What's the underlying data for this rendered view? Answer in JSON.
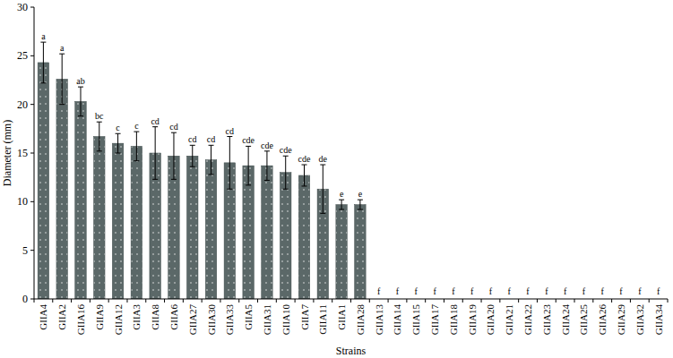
{
  "chart_data": {
    "type": "bar",
    "x_label": "Strains",
    "y_label": "Diameter (mm)",
    "categories": [
      "GIIA4",
      "GIIA2",
      "GIIA16",
      "GIIA9",
      "GIIA12",
      "GIIA3",
      "GIIA8",
      "GIIA6",
      "GIIA27",
      "GIIA30",
      "GIIA33",
      "GIIA5",
      "GIIA31",
      "GIIA10",
      "GIIA7",
      "GIIA11",
      "GIIA1",
      "GIIA28",
      "GIIA13",
      "GIIA14",
      "GIIA15",
      "GIIA17",
      "GIIA18",
      "GIIA19",
      "GIIA20",
      "GIIA21",
      "GIIA22",
      "GIIA23",
      "GIIA24",
      "GIIA25",
      "GIIA26",
      "GIIA29",
      "GIIA32",
      "GIIA34"
    ],
    "values": [
      24.3,
      22.6,
      20.3,
      16.7,
      16.0,
      15.7,
      15.0,
      14.7,
      14.7,
      14.3,
      14.0,
      13.7,
      13.7,
      13.0,
      12.7,
      11.3,
      9.7,
      9.7,
      0,
      0,
      0,
      0,
      0,
      0,
      0,
      0,
      0,
      0,
      0,
      0,
      0,
      0,
      0,
      0
    ],
    "errors": [
      2.1,
      2.6,
      1.5,
      1.5,
      1.0,
      1.5,
      2.7,
      2.4,
      1.1,
      1.5,
      2.7,
      2.0,
      1.5,
      1.7,
      1.1,
      2.5,
      0.5,
      0.5,
      0,
      0,
      0,
      0,
      0,
      0,
      0,
      0,
      0,
      0,
      0,
      0,
      0,
      0,
      0,
      0
    ],
    "letters": [
      "a",
      "a",
      "ab",
      "bc",
      "c",
      "c",
      "cd",
      "cd",
      "cd",
      "cd",
      "cd",
      "cde",
      "cde",
      "cde",
      "cde",
      "de",
      "e",
      "e",
      "f",
      "f",
      "f",
      "f",
      "f",
      "f",
      "f",
      "f",
      "f",
      "f",
      "f",
      "f",
      "f",
      "f",
      "f",
      "f"
    ],
    "color": "#5b6868",
    "ylim": [
      0,
      30
    ],
    "yticks": [
      0,
      5,
      10,
      15,
      20,
      25,
      30
    ],
    "grid": false
  }
}
